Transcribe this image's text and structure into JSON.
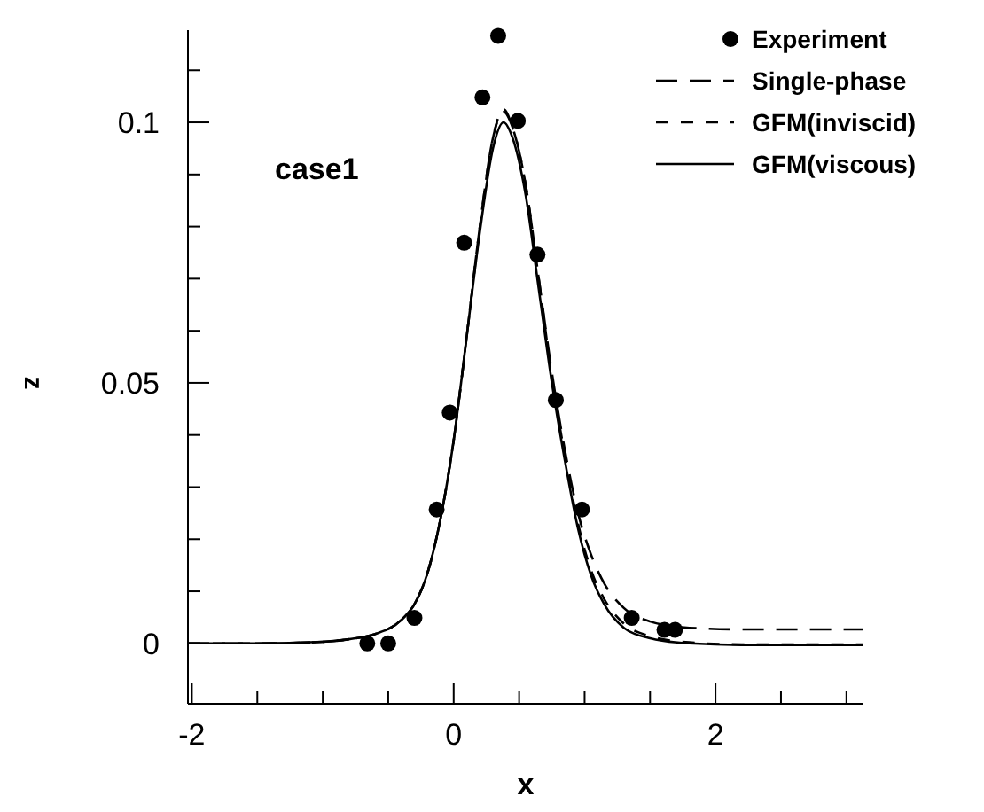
{
  "chart_data": {
    "type": "line",
    "xlabel": "x",
    "ylabel": "z",
    "annotations": [
      "case1"
    ],
    "xlim": [
      -2.03,
      3.13
    ],
    "ylim": [
      -0.0116,
      0.1177
    ],
    "xticks": [
      -2,
      {
        "value": -1.5,
        "label": null
      },
      {
        "value": -1,
        "label": null
      },
      {
        "value": -0.5,
        "label": null
      },
      0,
      {
        "value": 0.5,
        "label": null
      },
      {
        "value": 1,
        "label": null
      },
      {
        "value": 1.5,
        "label": null
      },
      2,
      {
        "value": 2.5,
        "label": null
      },
      {
        "value": 3,
        "label": null
      }
    ],
    "yticks": [
      0,
      {
        "value": 0.01,
        "label": null
      },
      {
        "value": 0.02,
        "label": null
      },
      {
        "value": 0.03,
        "label": null
      },
      {
        "value": 0.04,
        "label": null
      },
      0.05,
      {
        "value": 0.06,
        "label": null
      },
      {
        "value": 0.07,
        "label": null
      },
      {
        "value": 0.08,
        "label": null
      },
      {
        "value": 0.09,
        "label": null
      },
      0.1,
      {
        "value": 0.11,
        "label": null
      }
    ],
    "legend": "top right",
    "grid": false,
    "series": [
      {
        "name": "Experiment",
        "type": "scatter",
        "marker": "circle",
        "color": "#000000",
        "x": [
          -0.66,
          -0.5,
          -0.3,
          -0.13,
          -0.03,
          0.08,
          0.22,
          0.34,
          0.49,
          0.64,
          0.78,
          0.98,
          1.36,
          1.61,
          1.69
        ],
        "values": [
          0,
          0,
          0.0049,
          0.0257,
          0.0443,
          0.0769,
          0.1048,
          0.1166,
          0.1003,
          0.0746,
          0.0467,
          0.0257,
          0.0049,
          0.0026,
          0.0026
        ]
      },
      {
        "name": "Single-phase",
        "line_style": "dashed",
        "color": "#000000",
        "x": [
          -2.03,
          -1.5,
          -1,
          -0.8,
          -0.6,
          -0.4,
          -0.3,
          -0.2,
          -0.1,
          0,
          0.1,
          0.2,
          0.3,
          0.38,
          0.45,
          0.55,
          0.65,
          0.75,
          0.85,
          0.95,
          1.05,
          1.15,
          1.3,
          1.5,
          1.8,
          2.2,
          2.6,
          3.13
        ],
        "values": [
          0,
          0,
          0.0003,
          0.0008,
          0.0018,
          0.0045,
          0.0075,
          0.0135,
          0.024,
          0.039,
          0.059,
          0.08,
          0.097,
          0.102,
          0.099,
          0.088,
          0.07,
          0.052,
          0.037,
          0.025,
          0.017,
          0.0115,
          0.0068,
          0.0042,
          0.003,
          0.0027,
          0.0027,
          0.0027
        ]
      },
      {
        "name": "GFM(inviscid)",
        "line_style": "dotted",
        "color": "#000000",
        "x": [
          -2.03,
          -1.5,
          -1,
          -0.8,
          -0.6,
          -0.4,
          -0.3,
          -0.2,
          -0.1,
          0,
          0.1,
          0.2,
          0.3,
          0.38,
          0.45,
          0.55,
          0.65,
          0.75,
          0.85,
          0.95,
          1.05,
          1.15,
          1.3,
          1.5,
          1.8,
          2.2,
          2.6,
          3.13
        ],
        "values": [
          0,
          0,
          0.0003,
          0.0008,
          0.0018,
          0.0045,
          0.0075,
          0.0135,
          0.024,
          0.039,
          0.059,
          0.08,
          0.097,
          0.1025,
          0.099,
          0.088,
          0.07,
          0.051,
          0.036,
          0.023,
          0.014,
          0.0085,
          0.0038,
          0.0014,
          0.0002,
          -0.0002,
          -0.0002,
          -0.0002
        ]
      },
      {
        "name": "GFM(viscous)",
        "line_style": "solid",
        "color": "#000000",
        "x": [
          -2.03,
          -1.5,
          -1,
          -0.8,
          -0.6,
          -0.4,
          -0.3,
          -0.2,
          -0.1,
          0,
          0.1,
          0.2,
          0.3,
          0.38,
          0.45,
          0.55,
          0.65,
          0.75,
          0.85,
          0.95,
          1.05,
          1.15,
          1.3,
          1.5,
          1.8,
          2.2,
          2.6,
          3.13
        ],
        "values": [
          0,
          0,
          0.0003,
          0.0008,
          0.0018,
          0.0045,
          0.0075,
          0.0135,
          0.024,
          0.039,
          0.059,
          0.079,
          0.095,
          0.1,
          0.097,
          0.086,
          0.068,
          0.05,
          0.035,
          0.022,
          0.013,
          0.0075,
          0.003,
          0.001,
          0,
          -0.0003,
          -0.0003,
          -0.0003
        ]
      }
    ]
  }
}
